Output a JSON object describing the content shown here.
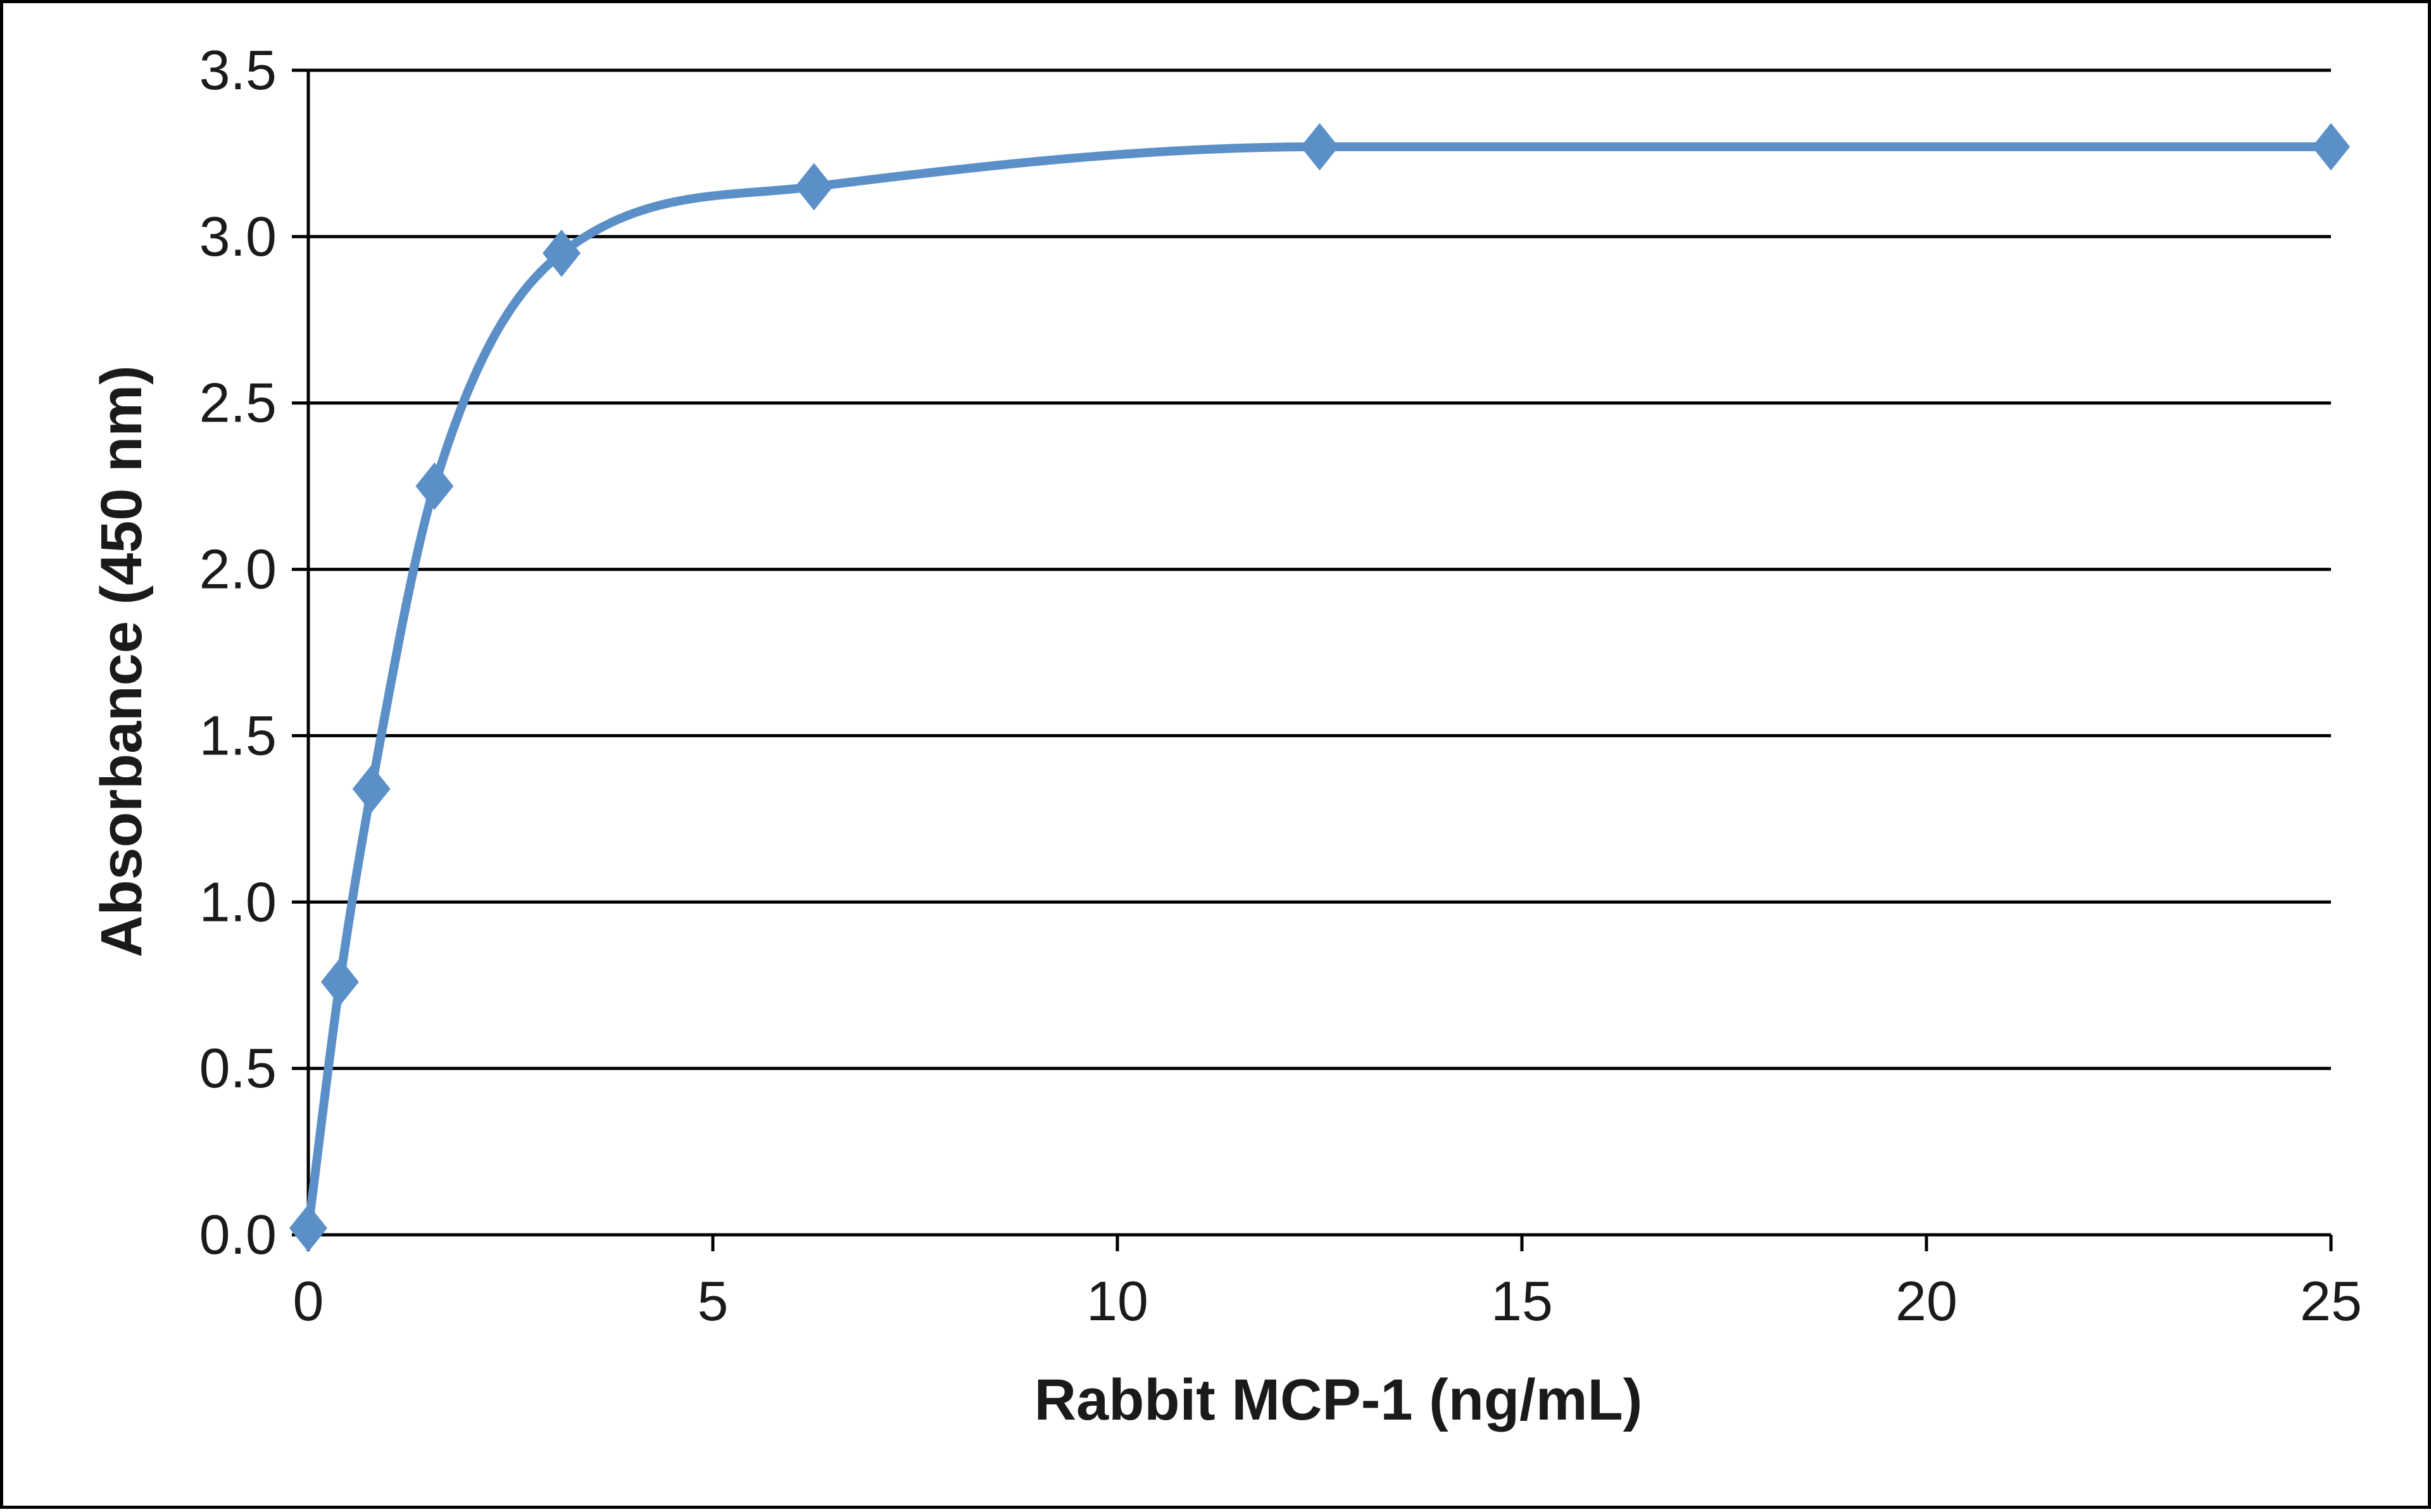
{
  "chart_data": {
    "type": "line",
    "title": "",
    "xlabel": "Rabbit MCP-1 (ng/mL)",
    "ylabel": "Absorbance  (450  nm)",
    "xlim": [
      0,
      25
    ],
    "ylim": [
      0,
      3.5
    ],
    "x_ticks": [
      {
        "value": 0,
        "label": "0"
      },
      {
        "value": 5,
        "label": "5"
      },
      {
        "value": 10,
        "label": "10"
      },
      {
        "value": 15,
        "label": "15"
      },
      {
        "value": 20,
        "label": "20"
      },
      {
        "value": 25,
        "label": "25"
      }
    ],
    "y_ticks": [
      {
        "value": 0,
        "label": "0.0"
      },
      {
        "value": 0.5,
        "label": "0.5"
      },
      {
        "value": 1.0,
        "label": "1.0"
      },
      {
        "value": 1.5,
        "label": "1.5"
      },
      {
        "value": 2.0,
        "label": "2.0"
      },
      {
        "value": 2.5,
        "label": "2.5"
      },
      {
        "value": 3.0,
        "label": "3.0"
      },
      {
        "value": 3.5,
        "label": "3.5"
      }
    ],
    "grid": "horizontal",
    "legend": "none",
    "series": [
      {
        "marker": "diamond",
        "color": "#5b8fc7",
        "smooth": true,
        "x": [
          0,
          0.39,
          0.78,
          1.56,
          3.13,
          6.25,
          12.5,
          25
        ],
        "y": [
          0.02,
          0.76,
          1.34,
          2.25,
          2.95,
          3.15,
          3.27,
          3.27
        ]
      }
    ]
  }
}
